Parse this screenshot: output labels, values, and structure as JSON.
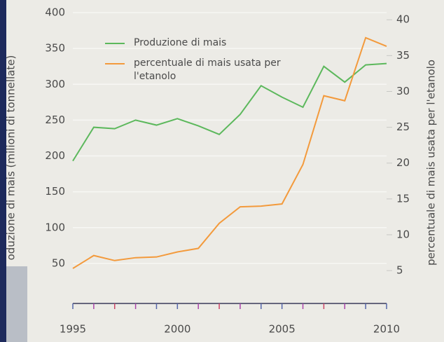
{
  "chart_data": {
    "type": "line",
    "y_label": "oduzione di mais (milioni di tonnellate)",
    "y2_label": "percentuale di mais usata per l'etanolo",
    "x": [
      1995,
      1996,
      1997,
      1998,
      1999,
      2000,
      2001,
      2002,
      2003,
      2004,
      2005,
      2006,
      2007,
      2008,
      2009,
      2010
    ],
    "xlim": [
      1995,
      2010
    ],
    "xticks": [
      1995,
      2000,
      2005,
      2010
    ],
    "ylim": [
      0,
      400
    ],
    "yticks": [
      50,
      100,
      150,
      200,
      250,
      300,
      350,
      400
    ],
    "y2lim": [
      1,
      41
    ],
    "y2ticks": [
      5,
      10,
      15,
      20,
      25,
      30,
      35,
      40
    ],
    "grid": true,
    "series": [
      {
        "name": "Produzione di mais",
        "color": "#5cb85c",
        "values": [
          193,
          240,
          238,
          250,
          243,
          252,
          242,
          230,
          258,
          298,
          282,
          268,
          325,
          303,
          327,
          329
        ]
      },
      {
        "name": "percentuale di mais usata per l'etanolo",
        "color": "#f39a3c",
        "axis": "y2",
        "values": [
          5.3,
          7.1,
          6.4,
          6.8,
          6.9,
          7.6,
          8.1,
          11.6,
          13.9,
          14,
          14.3,
          19.8,
          29.4,
          28.7,
          37.5,
          36.3
        ]
      }
    ]
  }
}
